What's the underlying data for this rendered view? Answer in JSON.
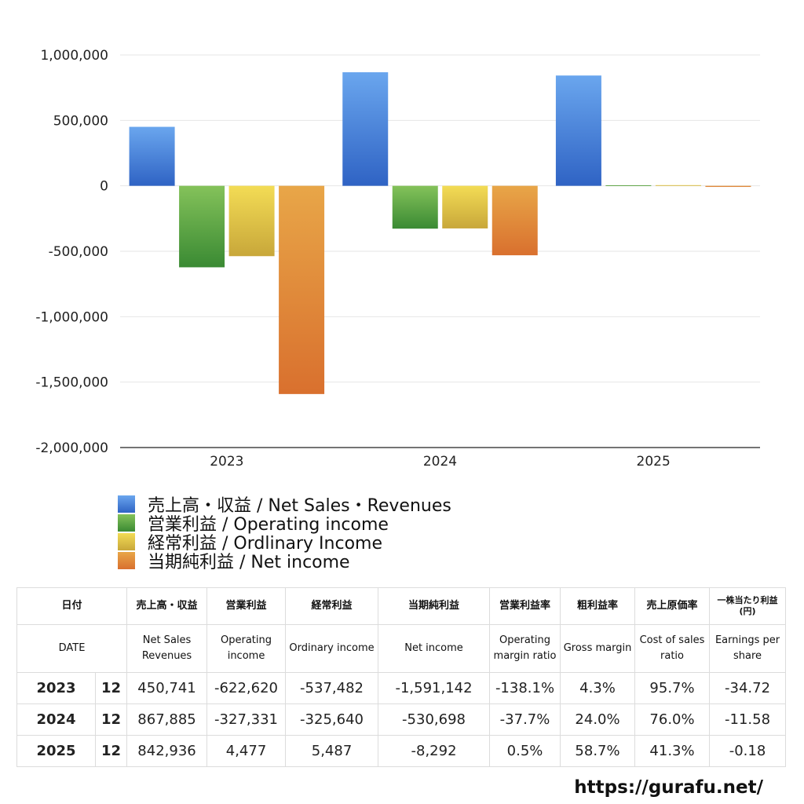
{
  "chart_data": {
    "type": "bar",
    "categories": [
      "2023",
      "2024",
      "2025"
    ],
    "series": [
      {
        "name": "売上高・収益 / Net Sales・Revenues",
        "values": [
          450741,
          867885,
          842936
        ],
        "color_top": "#6aa6ee",
        "color_bottom": "#2f63c4"
      },
      {
        "name": "営業利益 / Operating income",
        "values": [
          -622620,
          -327331,
          4477
        ],
        "color_top": "#84c25a",
        "color_bottom": "#3a8a33"
      },
      {
        "name": "経常利益 / Ordlinary Income",
        "values": [
          -537482,
          -325640,
          5487
        ],
        "color_top": "#f3dc55",
        "color_bottom": "#c8a73a"
      },
      {
        "name": "当期純利益 / Net income",
        "values": [
          -1591142,
          -530698,
          -8292
        ],
        "color_top": "#e8a648",
        "color_bottom": "#d9702e"
      }
    ],
    "ylim": [
      -2000000,
      1000000
    ],
    "yticks": [
      1000000,
      500000,
      0,
      -500000,
      -1000000,
      -1500000,
      -2000000
    ],
    "ytick_labels": [
      "1,000,000",
      "500,000",
      "0",
      "-500,000",
      "-1,000,000",
      "-1,500,000",
      "-2,000,000"
    ],
    "grid": true,
    "legend_position": "bottom-left"
  },
  "table": {
    "headers_jp": [
      "日付",
      "売上高・収益",
      "営業利益",
      "経常利益",
      "当期純利益",
      "営業利益率",
      "粗利益率",
      "売上原価率",
      "一株当たり利益(円)"
    ],
    "headers_en": [
      "DATE",
      "Net Sales Revenues",
      "Operating income",
      "Ordinary income",
      "Net income",
      "Operating margin ratio",
      "Gross margin",
      "Cost of sales ratio",
      "Earnings per share"
    ],
    "rows": [
      {
        "year": "2023",
        "month": "12",
        "cells": [
          "450,741",
          "-622,620",
          "-537,482",
          "-1,591,142",
          "-138.1%",
          "4.3%",
          "95.7%",
          "-34.72"
        ]
      },
      {
        "year": "2024",
        "month": "12",
        "cells": [
          "867,885",
          "-327,331",
          "-325,640",
          "-530,698",
          "-37.7%",
          "24.0%",
          "76.0%",
          "-11.58"
        ]
      },
      {
        "year": "2025",
        "month": "12",
        "cells": [
          "842,936",
          "4,477",
          "5,487",
          "-8,292",
          "0.5%",
          "58.7%",
          "41.3%",
          "-0.18"
        ]
      }
    ]
  },
  "site": "https://gurafu.net/"
}
